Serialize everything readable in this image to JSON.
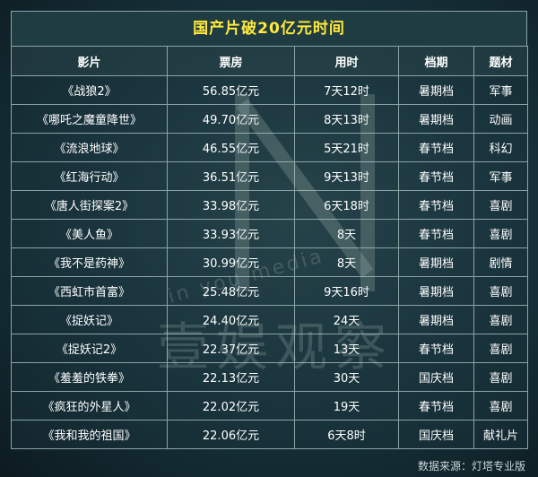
{
  "title": "国产片破20亿元时间",
  "headers": [
    "影片",
    "票房",
    "用时",
    "档期",
    "题材"
  ],
  "rows": [
    [
      "《战狼2》",
      "56.85亿元",
      "7天12时",
      "暑期档",
      "军事"
    ],
    [
      "《哪吒之魔童降世》",
      "49.70亿元",
      "8天13时",
      "暑期档",
      "动画"
    ],
    [
      "《流浪地球》",
      "46.55亿元",
      "5天21时",
      "春节档",
      "科幻"
    ],
    [
      "《红海行动》",
      "36.51亿元",
      "9天13时",
      "春节档",
      "军事"
    ],
    [
      "《唐人街探案2》",
      "33.98亿元",
      "6天18时",
      "春节档",
      "喜剧"
    ],
    [
      "《美人鱼》",
      "33.93亿元",
      "8天",
      "春节档",
      "喜剧"
    ],
    [
      "《我不是药神》",
      "30.99亿元",
      "8天",
      "暑期档",
      "剧情"
    ],
    [
      "《西虹市首富》",
      "25.48亿元",
      "9天16时",
      "暑期档",
      "喜剧"
    ],
    [
      "《捉妖记》",
      "24.40亿元",
      "24天",
      "暑期档",
      "喜剧"
    ],
    [
      "《捉妖记2》",
      "22.37亿元",
      "13天",
      "春节档",
      "喜剧"
    ],
    [
      "《羞羞的铁拳》",
      "22.13亿元",
      "30天",
      "国庆档",
      "喜剧"
    ],
    [
      "《疯狂的外星人》",
      "22.02亿元",
      "19天",
      "春节档",
      "喜剧"
    ],
    [
      "《我和我的祖国》",
      "22.06亿元",
      "6天8时",
      "国庆档",
      "献礼片"
    ]
  ],
  "watermark": {
    "latin": "in you media",
    "chinese": "壹娱观察"
  },
  "source": "数据来源：灯塔专业版",
  "colors": {
    "title_text": "#ffe93a",
    "border": "#8aa4a6",
    "background": "#17313a"
  }
}
